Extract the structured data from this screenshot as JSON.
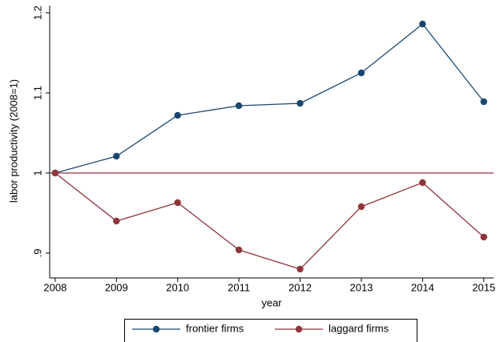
{
  "chart_data": {
    "type": "line",
    "x": [
      2008,
      2009,
      2010,
      2011,
      2012,
      2013,
      2014,
      2015
    ],
    "series": [
      {
        "name": "frontier firms",
        "color": "#1a476f",
        "values": [
          1.0,
          1.021,
          1.072,
          1.084,
          1.087,
          1.125,
          1.186,
          1.089
        ]
      },
      {
        "name": "laggard firms",
        "color": "#90353b",
        "values": [
          1.0,
          0.94,
          0.963,
          0.904,
          0.88,
          0.958,
          0.988,
          0.92
        ]
      }
    ],
    "reference_line": {
      "value": 1,
      "color": "#90353b"
    },
    "xlabel": "year",
    "ylabel": "labor productivity (2008=1)",
    "xlim": [
      2007.91,
      2015.16
    ],
    "xticks": [
      2008,
      2009,
      2010,
      2011,
      2012,
      2013,
      2014,
      2015
    ],
    "ylim": [
      0.869,
      1.209
    ],
    "yticks": [
      {
        "value": 0.9,
        "label": ".9"
      },
      1,
      1.1,
      1.2
    ],
    "legend": "bottom"
  }
}
